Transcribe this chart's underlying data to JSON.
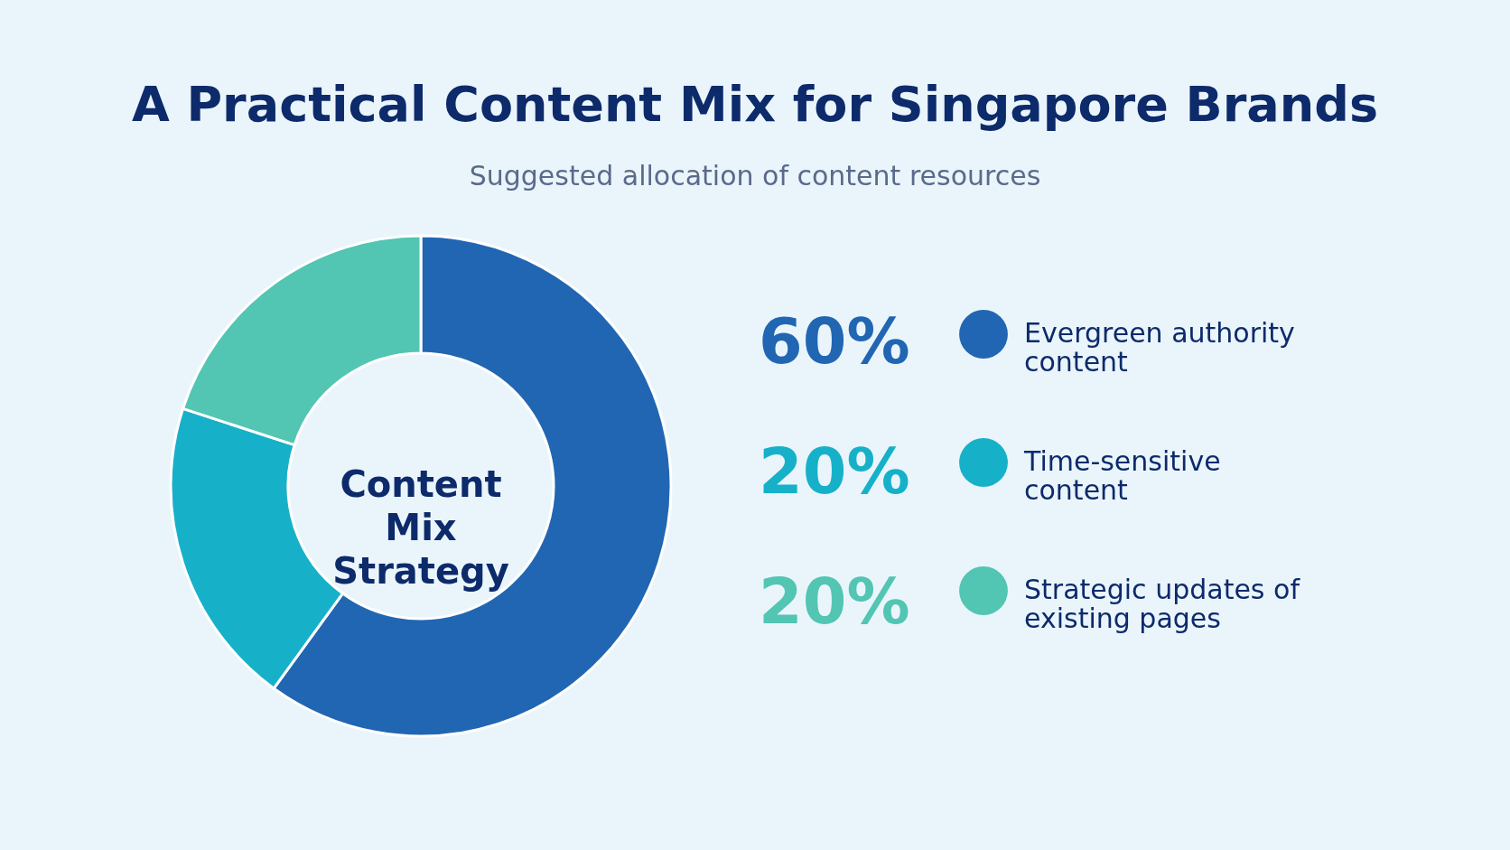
{
  "chart_data": {
    "type": "donut",
    "title": "A Practical Content Mix for Singapore Brands",
    "subtitle": "Suggested allocation of content resources",
    "categories": [
      "Evergreen authority content",
      "Time-sensitive content",
      "Strategic updates of existing pages"
    ],
    "values": [
      60,
      20,
      20
    ],
    "colors": [
      "#2166b3",
      "#16b1c9",
      "#52c5b3"
    ],
    "value_labels": [
      "60%",
      "20%",
      "20%"
    ],
    "legend": "right",
    "annotations": [
      "Content Mix Strategy"
    ]
  }
}
